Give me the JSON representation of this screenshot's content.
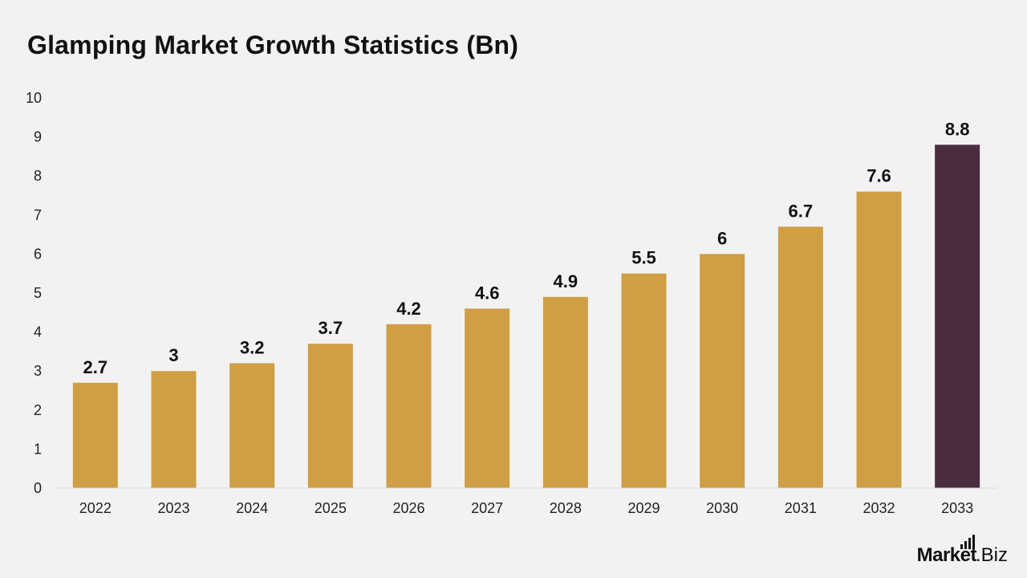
{
  "chart_data": {
    "type": "bar",
    "title": "Glamping Market Growth Statistics (Bn)",
    "xlabel": "",
    "ylabel": "",
    "categories": [
      "2022",
      "2023",
      "2024",
      "2025",
      "2026",
      "2027",
      "2028",
      "2029",
      "2030",
      "2031",
      "2032",
      "2033"
    ],
    "values": [
      2.7,
      3,
      3.2,
      3.7,
      4.2,
      4.6,
      4.9,
      5.5,
      6,
      6.7,
      7.6,
      8.8
    ],
    "data_labels": [
      "2.7",
      "3",
      "3.2",
      "3.7",
      "4.2",
      "4.6",
      "4.9",
      "5.5",
      "6",
      "6.7",
      "7.6",
      "8.8"
    ],
    "ylim": [
      0,
      10
    ],
    "yticks": [
      "0",
      "1",
      "2",
      "3",
      "4",
      "5",
      "6",
      "7",
      "8",
      "9",
      "10"
    ],
    "grid": false,
    "legend": "none",
    "colors": {
      "bar": "#d09e44",
      "highlight_bar": "#4a2c3f",
      "axis": "#d9d9d9",
      "background": "#f2f2f2"
    },
    "highlight_index": 11
  },
  "brand": {
    "logo_text_bold": "Market",
    "logo_text_regular": ".Biz"
  }
}
